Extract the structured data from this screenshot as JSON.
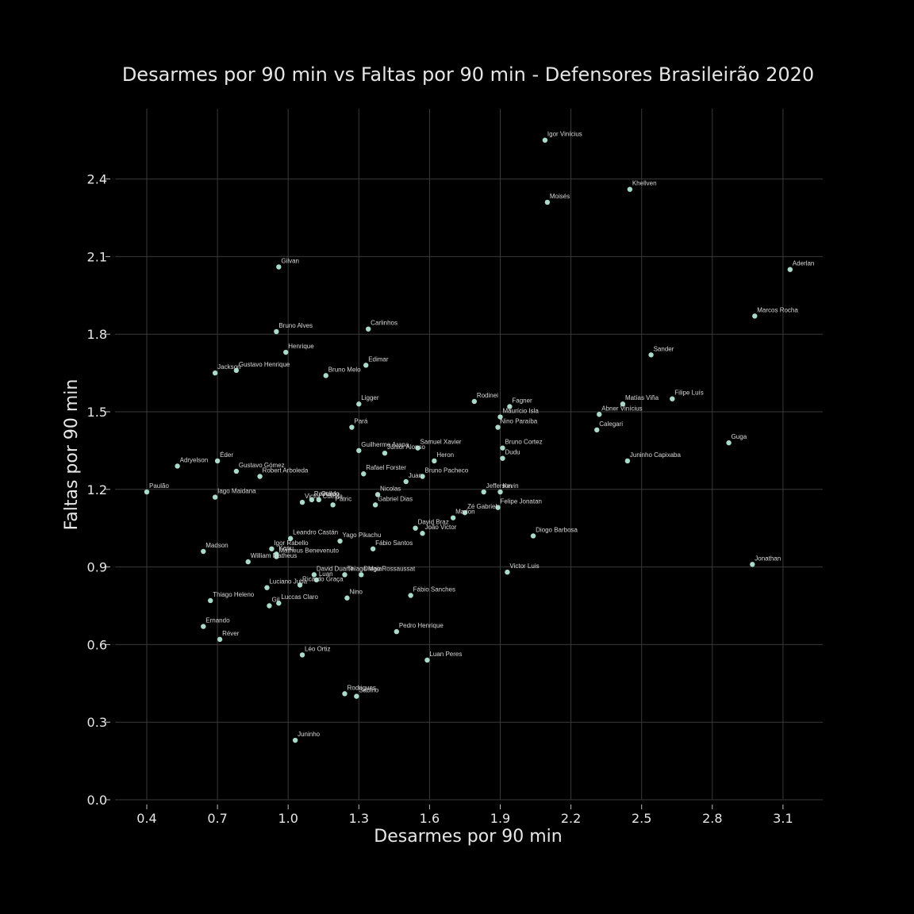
{
  "chart_data": {
    "type": "scatter",
    "title": "Desarmes por 90 min vs Faltas por 90 min - Defensores Brasileirão 2020",
    "xlabel": "Desarmes por 90 min",
    "ylabel": "Faltas por 90 min",
    "xlim": [
      0.4,
      3.13
    ],
    "ylim": [
      0.0,
      2.64
    ],
    "xticks": [
      "0.4",
      "0.7",
      "1.0",
      "1.3",
      "1.6",
      "1.9",
      "2.2",
      "2.5",
      "2.8",
      "3.1"
    ],
    "yticks": [
      "0.0",
      "0.3",
      "0.6",
      "0.9",
      "1.2",
      "1.5",
      "1.8",
      "2.1",
      "2.4"
    ],
    "grid": true,
    "colors": {
      "background": "#000000",
      "point": "#a8dcc8",
      "grid": "#3a3a3a",
      "text": "#e6e6e6"
    },
    "points": [
      {
        "name": "Igor Vinícius",
        "x": 2.09,
        "y": 2.55
      },
      {
        "name": "Khellven",
        "x": 2.45,
        "y": 2.36
      },
      {
        "name": "Moisés",
        "x": 2.1,
        "y": 2.31
      },
      {
        "name": "Aderlan",
        "x": 3.13,
        "y": 2.05
      },
      {
        "name": "Gilvan",
        "x": 0.96,
        "y": 2.06
      },
      {
        "name": "Marcos Rocha",
        "x": 2.98,
        "y": 1.87
      },
      {
        "name": "Bruno Alves",
        "x": 0.95,
        "y": 1.81
      },
      {
        "name": "Carlinhos",
        "x": 1.34,
        "y": 1.82
      },
      {
        "name": "Henrique",
        "x": 0.99,
        "y": 1.73
      },
      {
        "name": "Sander",
        "x": 2.54,
        "y": 1.72
      },
      {
        "name": "Edimar",
        "x": 1.33,
        "y": 1.68
      },
      {
        "name": "Jackson",
        "x": 0.69,
        "y": 1.65
      },
      {
        "name": "Gustavo Henrique",
        "x": 0.78,
        "y": 1.66
      },
      {
        "name": "Bruno Melo",
        "x": 1.16,
        "y": 1.64
      },
      {
        "name": "Filipe Luís",
        "x": 2.63,
        "y": 1.55
      },
      {
        "name": "Matías Viña",
        "x": 2.42,
        "y": 1.53
      },
      {
        "name": "Rodinei",
        "x": 1.79,
        "y": 1.54
      },
      {
        "name": "Fagner",
        "x": 1.94,
        "y": 1.52
      },
      {
        "name": "Ligger",
        "x": 1.3,
        "y": 1.53
      },
      {
        "name": "Maurício Isla",
        "x": 1.9,
        "y": 1.48
      },
      {
        "name": "Abner Vinícius",
        "x": 2.32,
        "y": 1.49
      },
      {
        "name": "Nino Paraíba",
        "x": 1.89,
        "y": 1.44
      },
      {
        "name": "Calegari",
        "x": 2.31,
        "y": 1.43
      },
      {
        "name": "Pará",
        "x": 1.27,
        "y": 1.44
      },
      {
        "name": "Guga",
        "x": 2.87,
        "y": 1.38
      },
      {
        "name": "Bruno Cortez",
        "x": 1.91,
        "y": 1.36
      },
      {
        "name": "Samuel Xavier",
        "x": 1.55,
        "y": 1.36
      },
      {
        "name": "Guilherme Arana",
        "x": 1.3,
        "y": 1.35
      },
      {
        "name": "Júnior Alonso",
        "x": 1.41,
        "y": 1.34
      },
      {
        "name": "Dudu",
        "x": 1.91,
        "y": 1.32
      },
      {
        "name": "Juninho Capixaba",
        "x": 2.44,
        "y": 1.31
      },
      {
        "name": "Heron",
        "x": 1.62,
        "y": 1.31
      },
      {
        "name": "Éder",
        "x": 0.7,
        "y": 1.31
      },
      {
        "name": "Adryelson",
        "x": 0.53,
        "y": 1.29
      },
      {
        "name": "Gustavo Gómez",
        "x": 0.78,
        "y": 1.27
      },
      {
        "name": "Robert Arboleda",
        "x": 0.88,
        "y": 1.25
      },
      {
        "name": "Rafael Forster",
        "x": 1.32,
        "y": 1.26
      },
      {
        "name": "Bruno Pacheco",
        "x": 1.57,
        "y": 1.25
      },
      {
        "name": "Juan",
        "x": 1.5,
        "y": 1.23
      },
      {
        "name": "Paulão",
        "x": 0.4,
        "y": 1.19
      },
      {
        "name": "Iago Maidana",
        "x": 0.69,
        "y": 1.17
      },
      {
        "name": "Nicolas",
        "x": 1.38,
        "y": 1.18
      },
      {
        "name": "Jefferson",
        "x": 1.83,
        "y": 1.19
      },
      {
        "name": "Kevin",
        "x": 1.9,
        "y": 1.19
      },
      {
        "name": "Reinaldo",
        "x": 1.1,
        "y": 1.16
      },
      {
        "name": "Otávio",
        "x": 1.13,
        "y": 1.16
      },
      {
        "name": "Victor Cuesta",
        "x": 1.06,
        "y": 1.15
      },
      {
        "name": "Patric",
        "x": 1.19,
        "y": 1.14
      },
      {
        "name": "Gabriel Dias",
        "x": 1.37,
        "y": 1.14
      },
      {
        "name": "Felipe Jonatan",
        "x": 1.89,
        "y": 1.13
      },
      {
        "name": "Zé Gabriel",
        "x": 1.75,
        "y": 1.11
      },
      {
        "name": "Marlon",
        "x": 1.7,
        "y": 1.09
      },
      {
        "name": "David Braz",
        "x": 1.54,
        "y": 1.05
      },
      {
        "name": "João Victor",
        "x": 1.57,
        "y": 1.03
      },
      {
        "name": "Diogo Barbosa",
        "x": 2.04,
        "y": 1.02
      },
      {
        "name": "Leandro Castán",
        "x": 1.01,
        "y": 1.01
      },
      {
        "name": "Yago Pikachu",
        "x": 1.22,
        "y": 1.0
      },
      {
        "name": "Igor Rabello",
        "x": 0.93,
        "y": 0.97
      },
      {
        "name": "Fábio Santos",
        "x": 1.36,
        "y": 0.97
      },
      {
        "name": "Madson",
        "x": 0.64,
        "y": 0.96
      },
      {
        "name": "Kanu",
        "x": 0.95,
        "y": 0.95
      },
      {
        "name": "Matheus Benevenuto",
        "x": 0.95,
        "y": 0.94
      },
      {
        "name": "William Matheus",
        "x": 0.83,
        "y": 0.92
      },
      {
        "name": "Jonathan",
        "x": 2.97,
        "y": 0.91
      },
      {
        "name": "Victor Luis",
        "x": 1.93,
        "y": 0.88
      },
      {
        "name": "David Duarte",
        "x": 1.11,
        "y": 0.87
      },
      {
        "name": "Thiago Maia",
        "x": 1.24,
        "y": 0.87
      },
      {
        "name": "Diego Rossaussat",
        "x": 1.31,
        "y": 0.87
      },
      {
        "name": "Luan",
        "x": 1.12,
        "y": 0.85
      },
      {
        "name": "Ricardo Graça",
        "x": 1.05,
        "y": 0.83
      },
      {
        "name": "Luciano Juba",
        "x": 0.91,
        "y": 0.82
      },
      {
        "name": "Fábio Sanches",
        "x": 1.52,
        "y": 0.79
      },
      {
        "name": "Nino",
        "x": 1.25,
        "y": 0.78
      },
      {
        "name": "Thiago Heleno",
        "x": 0.67,
        "y": 0.77
      },
      {
        "name": "Gil",
        "x": 0.92,
        "y": 0.75
      },
      {
        "name": "Luccas Claro",
        "x": 0.96,
        "y": 0.76
      },
      {
        "name": "Ernando",
        "x": 0.64,
        "y": 0.67
      },
      {
        "name": "Pedro Henrique",
        "x": 1.46,
        "y": 0.65
      },
      {
        "name": "Réver",
        "x": 0.71,
        "y": 0.62
      },
      {
        "name": "Léo Ortiz",
        "x": 1.06,
        "y": 0.56
      },
      {
        "name": "Luan Peres",
        "x": 1.59,
        "y": 0.54
      },
      {
        "name": "Rodrigues",
        "x": 1.24,
        "y": 0.41
      },
      {
        "name": "Sabino",
        "x": 1.29,
        "y": 0.4
      },
      {
        "name": "Juninho",
        "x": 1.03,
        "y": 0.23
      }
    ]
  }
}
